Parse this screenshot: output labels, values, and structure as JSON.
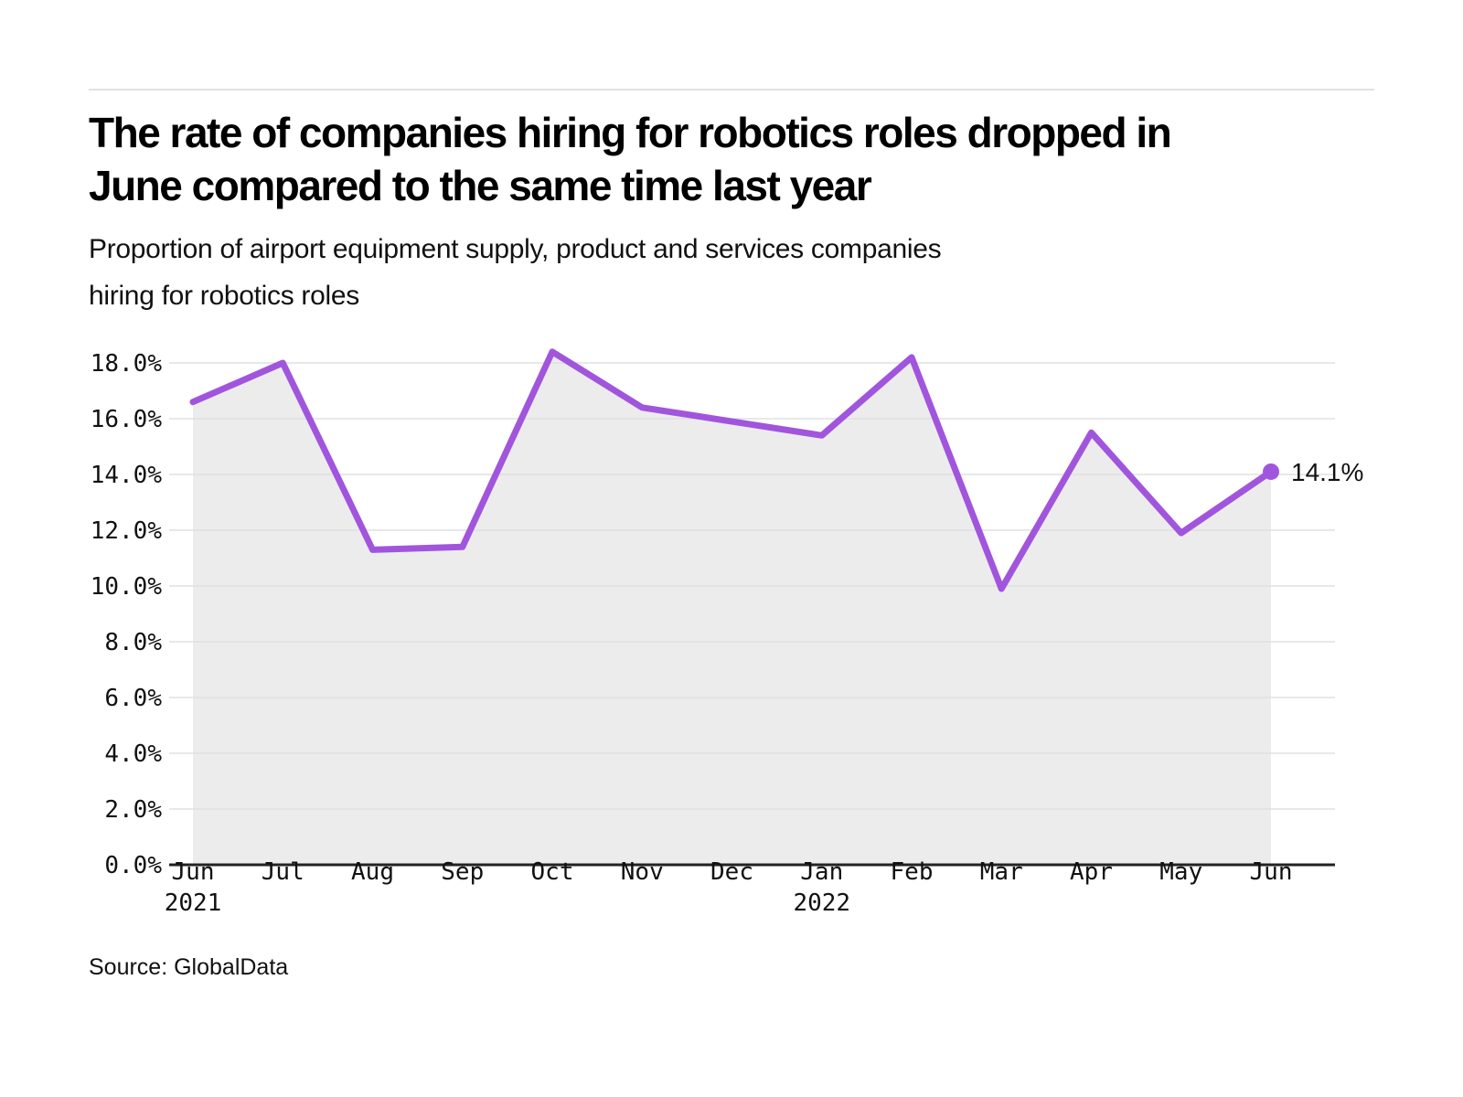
{
  "header": {
    "title_lines": [
      "The rate of companies hiring for robotics roles dropped in",
      "June compared to the same time last year"
    ],
    "subtitle_lines": [
      "Proportion of airport equipment supply, product and services companies",
      "hiring for robotics roles"
    ]
  },
  "footer": {
    "source": "Source: GlobalData"
  },
  "chart_data": {
    "type": "area",
    "title": "Proportion of airport equipment supply, product and services companies hiring for robotics roles",
    "x_labels": [
      "Jun",
      "Jul",
      "Aug",
      "Sep",
      "Oct",
      "Nov",
      "Dec",
      "Jan",
      "Feb",
      "Mar",
      "Apr",
      "May",
      "Jun"
    ],
    "x_year_labels": [
      {
        "index": 0,
        "label": "2021"
      },
      {
        "index": 7,
        "label": "2022"
      }
    ],
    "values": [
      16.6,
      18.0,
      11.3,
      11.4,
      18.4,
      16.4,
      15.9,
      15.4,
      18.2,
      9.9,
      15.5,
      11.9,
      14.1
    ],
    "unit": "%",
    "y_ticks": [
      0,
      2,
      4,
      6,
      8,
      10,
      12,
      14,
      16,
      18
    ],
    "ylim": [
      0,
      19
    ],
    "grid": true,
    "legend": "none",
    "end_label": "14.1%",
    "colors": {
      "line": "#a155dd",
      "area": "#ececec",
      "grid": "#e0e0e0",
      "axis": "#222222",
      "text": "#111111"
    }
  }
}
